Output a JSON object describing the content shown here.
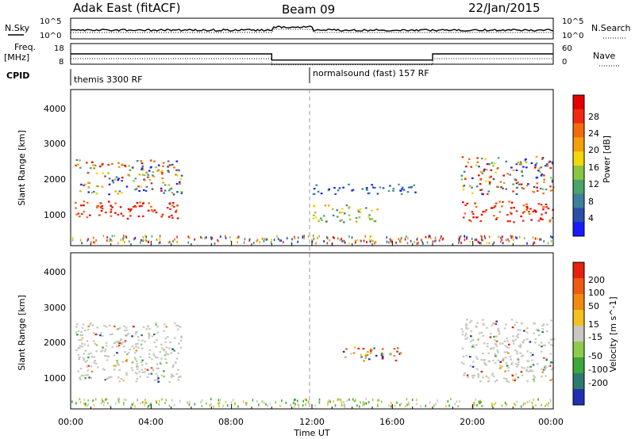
{
  "header": {
    "title": "Adak East (fitACF)",
    "beam": "Beam 09",
    "date": "22/Jan/2015"
  },
  "side_labels": {
    "nsky": "N.Sky",
    "nsearch": "N.Search",
    "freq_line1": "Freq.",
    "freq_line2": "[MHz]",
    "nave": "Nave",
    "cpid": "CPID"
  },
  "cpid_labels": [
    "themis 3300 RF",
    "normalsound (fast) 157 RF"
  ],
  "noise_axis": {
    "left": [
      "10^5",
      "10^0"
    ],
    "right": [
      "10^5",
      "10^0"
    ]
  },
  "freq_axis": {
    "left": [
      "18",
      "8"
    ],
    "right": [
      "60",
      "0"
    ]
  },
  "x_axis": {
    "label": "Time UT",
    "ticks": [
      "00:00",
      "04:00",
      "08:00",
      "12:00",
      "16:00",
      "20:00",
      "00:00"
    ]
  },
  "power_panel": {
    "ylabel": "Slant Range [km]",
    "yticks": [
      "4000",
      "3000",
      "2000",
      "1000"
    ],
    "colorbar_label": "Power [dB]",
    "colorbar_ticks": [
      "28",
      "24",
      "20",
      "16",
      "12",
      "8",
      "4"
    ],
    "colors": [
      "#1a1aff",
      "#2a4fa8",
      "#3c7f9c",
      "#4aa36a",
      "#8cc640",
      "#f2d70a",
      "#f4a00c",
      "#f46a0e",
      "#ef2a10",
      "#e30000"
    ]
  },
  "velocity_panel": {
    "ylabel": "Slant Range [km]",
    "yticks": [
      "4000",
      "3000",
      "2000",
      "1000"
    ],
    "colorbar_label": "Velocity [m s^-1]",
    "colorbar_ticks": [
      "200",
      "100",
      "50",
      "15",
      "-15",
      "-50",
      "-100",
      "-200"
    ],
    "colors": [
      "#2030b0",
      "#2f7a70",
      "#3aa83a",
      "#8ccc4a",
      "#c8c8c0",
      "#f2c020",
      "#f08a10",
      "#ee5a10",
      "#e82010"
    ]
  },
  "chart_data": {
    "type": "heatmap",
    "x_range_hours": [
      0,
      24
    ],
    "y_range_km": [
      0,
      4500
    ],
    "power_regions": [
      {
        "t": [
          0.2,
          5.5
        ],
        "r": [
          800,
          1300
        ],
        "level": "high"
      },
      {
        "t": [
          0.2,
          5.5
        ],
        "r": [
          1500,
          2500
        ],
        "level": "mixed"
      },
      {
        "t": [
          12.0,
          15.3
        ],
        "r": [
          700,
          1200
        ],
        "level": "medium"
      },
      {
        "t": [
          12.0,
          17.2
        ],
        "r": [
          1500,
          1800
        ],
        "level": "low"
      },
      {
        "t": [
          19.4,
          24.0
        ],
        "r": [
          700,
          1300
        ],
        "level": "high"
      },
      {
        "t": [
          19.4,
          24.0
        ],
        "r": [
          1500,
          2600
        ],
        "level": "mixed"
      }
    ],
    "velocity_regions": [
      {
        "t": [
          0.2,
          5.5
        ],
        "r": [
          800,
          2500
        ],
        "class": "ground"
      },
      {
        "t": [
          13.5,
          16.5
        ],
        "r": [
          1400,
          1800
        ],
        "class": "mixed"
      },
      {
        "t": [
          19.4,
          24.0
        ],
        "r": [
          800,
          2600
        ],
        "class": "ground"
      }
    ],
    "cpid_change_hour": 12.0,
    "frequency_mhz": [
      {
        "t": [
          0,
          10
        ],
        "v": 13
      },
      {
        "t": [
          10,
          18
        ],
        "v": 10
      },
      {
        "t": [
          18,
          24
        ],
        "v": 13
      }
    ]
  }
}
